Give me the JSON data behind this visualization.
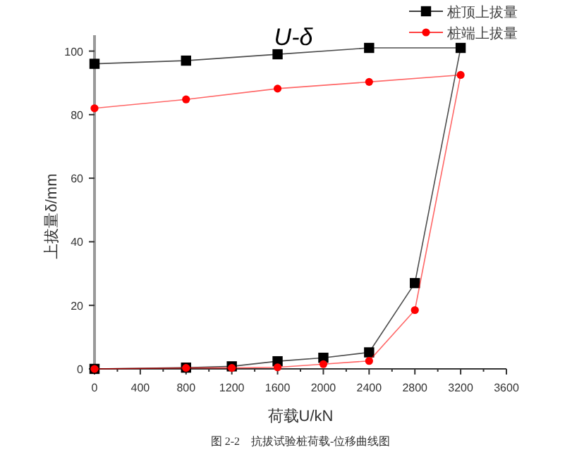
{
  "chart_data": {
    "type": "line",
    "title": "U-δ",
    "xlabel": "荷载U/kN",
    "ylabel": "上拔量δ/mm",
    "annotations": [
      "图 2-2　抗拔试验桩荷载-位移曲线图"
    ],
    "series": [
      {
        "name": "桩顶上拔量",
        "color": "#000000",
        "marker": "square",
        "x": [
          0,
          800,
          1200,
          1600,
          2000,
          2400,
          2800,
          3200,
          2400,
          1600,
          800,
          0
        ],
        "values": [
          0,
          0.4,
          0.8,
          2.4,
          3.5,
          5.2,
          27,
          101,
          101,
          99,
          97,
          96
        ]
      },
      {
        "name": "桩端上拔量",
        "color": "#ff0000",
        "marker": "circle",
        "x": [
          0,
          800,
          1200,
          1600,
          2000,
          2400,
          2800,
          3200,
          2400,
          1600,
          800,
          0
        ],
        "values": [
          0,
          0.3,
          0.3,
          0.5,
          1.5,
          2.5,
          18.5,
          92.5,
          90.3,
          88.2,
          84.8,
          82
        ]
      }
    ],
    "xlim": [
      0,
      3600
    ],
    "ylim": [
      0,
      105
    ],
    "xticks": [
      0,
      {
        "value": 200,
        "label": null
      },
      400,
      {
        "value": 600,
        "label": null
      },
      800,
      {
        "value": 1000,
        "label": null
      },
      1200,
      {
        "value": 1400,
        "label": null
      },
      1600,
      {
        "value": 1800,
        "label": null
      },
      2000,
      {
        "value": 2200,
        "label": null
      },
      2400,
      {
        "value": 2600,
        "label": null
      },
      2800,
      {
        "value": 3000,
        "label": null
      },
      3200,
      {
        "value": 3400,
        "label": null
      },
      3600
    ],
    "yticks": [
      0,
      20,
      40,
      60,
      80,
      100
    ],
    "legend": "top right"
  }
}
